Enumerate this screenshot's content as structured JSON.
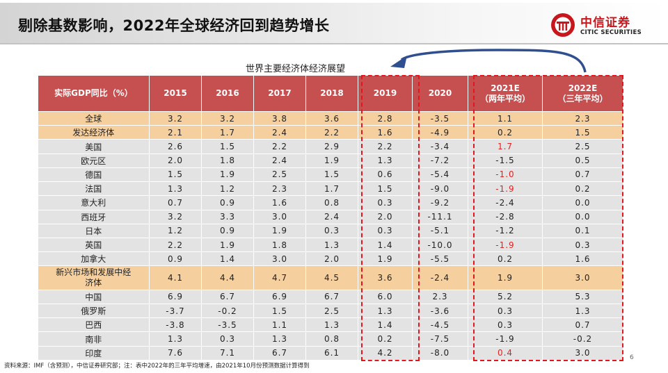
{
  "header": {
    "title": "剔除基数影响，2022年全球经济回到趋势增长",
    "logo_cn": "中信证券",
    "logo_en": "CITIC SECURITIES"
  },
  "table_title": "世界主要经济体经济展望",
  "table": {
    "columns": [
      {
        "line1": "实际GDP同比（%）",
        "line2": ""
      },
      {
        "line1": "2015",
        "line2": ""
      },
      {
        "line1": "2016",
        "line2": ""
      },
      {
        "line1": "2017",
        "line2": ""
      },
      {
        "line1": "2018",
        "line2": ""
      },
      {
        "line1": "2019",
        "line2": ""
      },
      {
        "line1": "2020",
        "line2": ""
      },
      {
        "line1": "2021E",
        "line2": "（两年平均）"
      },
      {
        "line1": "2022E",
        "line2": "（三年平均）"
      }
    ],
    "rows": [
      {
        "region": "全球",
        "values": [
          "3.2",
          "3.2",
          "3.8",
          "3.6",
          "2.8",
          "-3.5",
          "1.1",
          "2.3"
        ]
      },
      {
        "region": "发达经济体",
        "values": [
          "2.1",
          "1.7",
          "2.4",
          "2.2",
          "1.6",
          "-4.9",
          "0.2",
          "1.5"
        ]
      },
      {
        "region": "美国",
        "values": [
          "2.6",
          "1.5",
          "2.2",
          "2.9",
          "2.2",
          "-3.4",
          "1.7",
          "2.5"
        ]
      },
      {
        "region": "欧元区",
        "values": [
          "2.0",
          "1.8",
          "2.4",
          "1.9",
          "1.3",
          "-7.2",
          "-1.5",
          "0.5"
        ]
      },
      {
        "region": "德国",
        "values": [
          "1.5",
          "1.9",
          "2.5",
          "1.5",
          "0.6",
          "-5.4",
          "-1.0",
          "0.7"
        ]
      },
      {
        "region": "法国",
        "values": [
          "1.3",
          "1.2",
          "2.3",
          "1.7",
          "1.5",
          "-9.0",
          "-1.9",
          "0.2"
        ]
      },
      {
        "region": "意大利",
        "values": [
          "0.7",
          "0.9",
          "1.6",
          "0.8",
          "0.3",
          "-9.2",
          "-2.4",
          "0.0"
        ]
      },
      {
        "region": "西班牙",
        "values": [
          "3.2",
          "3.3",
          "3.0",
          "2.4",
          "2.0",
          "-11.1",
          "-2.8",
          "0.0"
        ]
      },
      {
        "region": "日本",
        "values": [
          "1.2",
          "0.9",
          "1.9",
          "0.3",
          "0.3",
          "-5.1",
          "-1.2",
          "0.1"
        ]
      },
      {
        "region": "英国",
        "values": [
          "2.2",
          "1.9",
          "1.8",
          "1.3",
          "1.4",
          "-10.0",
          "-1.9",
          "0.3"
        ]
      },
      {
        "region": "加拿大",
        "values": [
          "0.9",
          "1.4",
          "3.0",
          "2.0",
          "1.9",
          "-5.5",
          "0.2",
          "1.6"
        ]
      },
      {
        "region": "新兴市场和发展中经济体",
        "values": [
          "4.1",
          "4.4",
          "4.7",
          "4.5",
          "3.6",
          "-2.4",
          "1.9",
          "3.0"
        ]
      },
      {
        "region": "中国",
        "values": [
          "6.9",
          "6.7",
          "6.9",
          "6.7",
          "6.0",
          "2.3",
          "5.2",
          "5.3"
        ]
      },
      {
        "region": "俄罗斯",
        "values": [
          "-3.7",
          "-0.2",
          "1.5",
          "2.5",
          "1.3",
          "-3.6",
          "0.3",
          "1.3"
        ]
      },
      {
        "region": "巴西",
        "values": [
          "-3.8",
          "-3.5",
          "1.1",
          "1.3",
          "1.4",
          "-4.5",
          "0.3",
          "0.7"
        ]
      },
      {
        "region": "南非",
        "values": [
          "1.3",
          "0.3",
          "1.3",
          "0.8",
          "0.2",
          "-7.5",
          "-1.9",
          "-0.2"
        ]
      },
      {
        "region": "印度",
        "values": [
          "7.6",
          "7.1",
          "6.7",
          "6.1",
          "4.2",
          "-8.0",
          "0.4",
          "3.0"
        ]
      }
    ]
  },
  "colors": {
    "header_bg": "#c64f50",
    "row_bg": "#e3e3e3",
    "highlight_row_bg": "#f6cf9e",
    "dashed_box": "#e3161d",
    "arrow": "#2f4f8f",
    "negative_emphasis": "#e32020"
  },
  "footnote": "资料来源：IMF（含预测），中信证券研究部；注：表中2022年的三年平均增速，由2021年10月份预测数据计算得到",
  "page_number": "6"
}
